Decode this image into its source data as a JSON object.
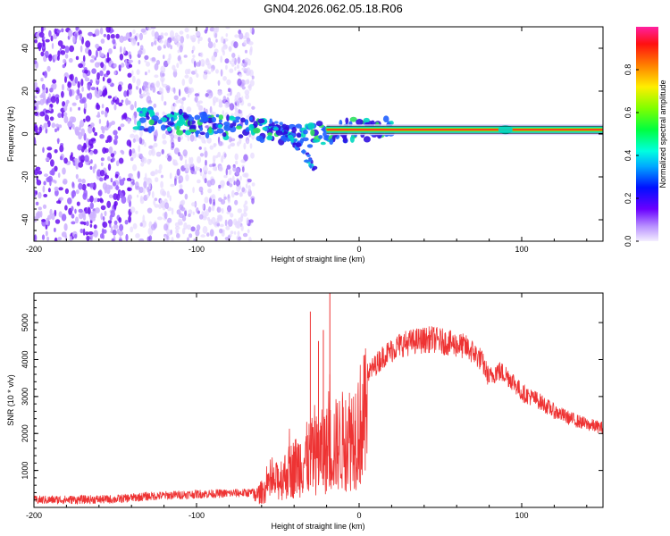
{
  "title": "GN04.2026.062.05.18.R06",
  "chart_data": [
    {
      "type": "heatmap",
      "name": "spectrogram",
      "xlabel": "Height of straight line (km)",
      "ylabel": "Frequency (Hz)",
      "xlim": [
        -200,
        150
      ],
      "ylim": [
        -50,
        50
      ],
      "x_ticks": [
        -200,
        -100,
        0,
        100
      ],
      "x_tick_labels": [
        "-200",
        "-100",
        "0",
        "100"
      ],
      "y_ticks": [
        -40,
        -20,
        0,
        20,
        40
      ],
      "y_tick_labels": [
        "-40",
        "-20",
        "0",
        "20",
        "40"
      ],
      "colorbar": {
        "label": "Normalized spectral amplitude",
        "range": [
          0,
          1
        ],
        "ticks": [
          0,
          0.2,
          0.4,
          0.6,
          0.8
        ],
        "tick_labels": [
          "0.0",
          "0.2",
          "0.4",
          "0.6",
          "0.8"
        ]
      },
      "features": {
        "noise_region_x": [
          -200,
          -65
        ],
        "noise_strong_x": [
          -200,
          -140
        ],
        "dispersed_trace": [
          [
            -137,
            7
          ],
          [
            -120,
            6
          ],
          [
            -100,
            5
          ],
          [
            -80,
            3
          ],
          [
            -60,
            2
          ],
          [
            -45,
            1
          ],
          [
            -30,
            -1
          ],
          [
            -20,
            1
          ],
          [
            0,
            2
          ],
          [
            20,
            2
          ]
        ],
        "lower_branch": [
          [
            -55,
            5
          ],
          [
            -45,
            2
          ],
          [
            -40,
            -3
          ],
          [
            -35,
            -8
          ],
          [
            -30,
            -13
          ],
          [
            -27,
            -17
          ]
        ],
        "steady_line": {
          "x": [
            -20,
            150
          ],
          "freq": 2
        }
      }
    },
    {
      "type": "line",
      "name": "snr",
      "xlabel": "Height of straight line (km)",
      "ylabel": "SNR (10 * v/v)",
      "xlim": [
        -200,
        150
      ],
      "ylim": [
        0,
        5800
      ],
      "x_ticks": [
        -200,
        -100,
        0,
        100
      ],
      "x_tick_labels": [
        "-200",
        "-100",
        "0",
        "100"
      ],
      "y_ticks": [
        1000,
        2000,
        3000,
        4000,
        5000
      ],
      "y_tick_labels": [
        "1000",
        "2000",
        "3000",
        "4000",
        "5000"
      ],
      "color": "#ee3333",
      "series": [
        {
          "name": "SNR",
          "envelope": [
            [
              -200,
              200
            ],
            [
              -150,
              220
            ],
            [
              -130,
              300
            ],
            [
              -100,
              360
            ],
            [
              -80,
              380
            ],
            [
              -65,
              400
            ],
            [
              -55,
              800
            ],
            [
              -45,
              1300
            ],
            [
              -35,
              1800
            ],
            [
              -25,
              2100
            ],
            [
              -15,
              2400
            ],
            [
              -5,
              2800
            ],
            [
              5,
              3600
            ],
            [
              15,
              4100
            ],
            [
              25,
              4400
            ],
            [
              35,
              4500
            ],
            [
              45,
              4550
            ],
            [
              55,
              4450
            ],
            [
              65,
              4350
            ],
            [
              70,
              4200
            ],
            [
              75,
              4000
            ],
            [
              80,
              3500
            ],
            [
              85,
              3700
            ],
            [
              90,
              3600
            ],
            [
              95,
              3400
            ],
            [
              100,
              3100
            ],
            [
              110,
              2900
            ],
            [
              120,
              2600
            ],
            [
              130,
              2400
            ],
            [
              140,
              2250
            ],
            [
              150,
              2150
            ]
          ],
          "spikes": [
            [
              -30,
              5300
            ],
            [
              -18,
              5800
            ],
            [
              -25,
              4500
            ],
            [
              -22,
              4800
            ]
          ]
        }
      ]
    }
  ]
}
